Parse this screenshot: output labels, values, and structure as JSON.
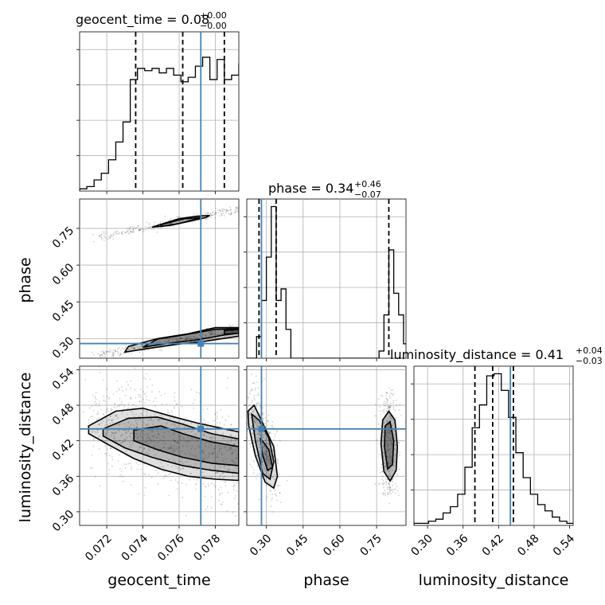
{
  "chart_data": {
    "type": "corner",
    "parameters": [
      "geocent_time",
      "phase",
      "luminosity_distance"
    ],
    "truths": {
      "geocent_time": 0.0772,
      "phase": 0.28,
      "luminosity_distance": 0.44
    },
    "colors": {
      "truth": "#4682b4",
      "hist": "#000000",
      "grid": "#b0b0b0"
    },
    "titles": [
      {
        "text": "geocent_time = 0.08",
        "sup": "+0.00",
        "sub": "−0.00"
      },
      {
        "text": "phase = 0.34",
        "sup": "+0.46",
        "sub": "−0.07"
      },
      {
        "text": "luminosity_distance = 0.41",
        "sup": "+0.04",
        "sub": "−0.03"
      }
    ],
    "axes": {
      "geocent_time": {
        "range": [
          0.0705,
          0.0793
        ],
        "ticks": [
          "0.072",
          "0.074",
          "0.076",
          "0.078"
        ],
        "label": "geocent_time",
        "quantiles": [
          0.0736,
          0.0762,
          0.0785
        ]
      },
      "phase": {
        "range": [
          0.22,
          0.87
        ],
        "ticks": [
          "0.30",
          "0.45",
          "0.60",
          "0.75"
        ],
        "label": "phase",
        "quantiles": [
          0.27,
          0.34,
          0.8
        ]
      },
      "luminosity_distance": {
        "range": [
          0.277,
          0.546
        ],
        "ticks": [
          "0.30",
          "0.36",
          "0.42",
          "0.48",
          "0.54"
        ],
        "label": "luminosity_distance",
        "quantiles": [
          0.38,
          0.41,
          0.445
        ]
      }
    },
    "hist_geocent_time": {
      "edges_start": 0.0705,
      "bin_width": 0.0004,
      "counts": [
        1,
        2,
        5,
        8,
        14,
        22,
        31,
        50,
        55,
        54,
        55,
        53,
        55,
        52,
        49,
        51,
        56,
        60,
        50,
        59,
        50,
        52,
        57,
        64,
        68,
        62
      ]
    },
    "hist_phase": {
      "edges_start": 0.22,
      "bin_width": 0.02,
      "counts": [
        0,
        0,
        15,
        40,
        70,
        105,
        40,
        48,
        20,
        0,
        0,
        0,
        0,
        0,
        0,
        0,
        0,
        0,
        0,
        0,
        0,
        0,
        0,
        0,
        0,
        0,
        0,
        5,
        30,
        75,
        45,
        30,
        10,
        2
      ]
    },
    "hist_luminosity_distance": {
      "edges_start": 0.277,
      "bin_width": 0.0123,
      "counts": [
        1,
        1,
        2,
        3,
        6,
        9,
        15,
        28,
        47,
        58,
        72,
        73,
        65,
        52,
        35,
        23,
        15,
        10,
        7,
        4,
        2,
        1
      ]
    },
    "contours": {
      "phase_vs_geocent_time": [
        {
          "x": [
            0.0745,
            0.0755,
            0.0765,
            0.0775,
            0.0777,
            0.077,
            0.076,
            0.0748
          ],
          "y": [
            0.755,
            0.762,
            0.778,
            0.795,
            0.803,
            0.8,
            0.79,
            0.762
          ]
        },
        {
          "x": [
            0.075,
            0.076,
            0.077,
            0.0772,
            0.0762,
            0.075
          ],
          "y": [
            0.758,
            0.77,
            0.79,
            0.795,
            0.788,
            0.765
          ]
        },
        {
          "x": [
            0.073,
            0.0745,
            0.076,
            0.0775,
            0.0793,
            0.0793,
            0.078,
            0.0765,
            0.0748,
            0.0732
          ],
          "y": [
            0.245,
            0.262,
            0.278,
            0.29,
            0.31,
            0.345,
            0.345,
            0.32,
            0.3,
            0.268
          ]
        },
        {
          "x": [
            0.074,
            0.0755,
            0.077,
            0.0785,
            0.0793,
            0.0793,
            0.078,
            0.0765,
            0.0748
          ],
          "y": [
            0.265,
            0.282,
            0.295,
            0.315,
            0.322,
            0.34,
            0.338,
            0.318,
            0.298
          ]
        },
        {
          "x": [
            0.0785,
            0.0793,
            0.0793,
            0.0785
          ],
          "y": [
            0.318,
            0.322,
            0.337,
            0.333
          ]
        }
      ],
      "luminosity_distance_vs_geocent_time": [
        {
          "x": [
            0.071,
            0.0725,
            0.074,
            0.0755,
            0.077,
            0.0785,
            0.0793,
            0.0793,
            0.078,
            0.0765,
            0.075,
            0.0735,
            0.072,
            0.071
          ],
          "y": [
            0.445,
            0.47,
            0.475,
            0.462,
            0.45,
            0.44,
            0.435,
            0.353,
            0.355,
            0.36,
            0.372,
            0.39,
            0.415,
            0.432
          ]
        },
        {
          "x": [
            0.0718,
            0.0732,
            0.0748,
            0.0762,
            0.0778,
            0.0793,
            0.0793,
            0.0778,
            0.0762,
            0.0745,
            0.073,
            0.0718
          ],
          "y": [
            0.44,
            0.458,
            0.46,
            0.448,
            0.432,
            0.423,
            0.365,
            0.37,
            0.378,
            0.392,
            0.408,
            0.428
          ]
        },
        {
          "x": [
            0.0735,
            0.075,
            0.0762,
            0.0778,
            0.0793,
            0.0793,
            0.0778,
            0.0762,
            0.0748,
            0.0735
          ],
          "y": [
            0.438,
            0.445,
            0.432,
            0.418,
            0.41,
            0.378,
            0.382,
            0.392,
            0.405,
            0.42
          ]
        }
      ],
      "luminosity_distance_vs_phase": [
        {
          "x": [
            0.225,
            0.25,
            0.285,
            0.33,
            0.345,
            0.33,
            0.295,
            0.255,
            0.228
          ],
          "y": [
            0.47,
            0.48,
            0.45,
            0.41,
            0.36,
            0.34,
            0.35,
            0.395,
            0.445
          ]
        },
        {
          "x": [
            0.24,
            0.27,
            0.31,
            0.33,
            0.315,
            0.285,
            0.255
          ],
          "y": [
            0.465,
            0.455,
            0.425,
            0.385,
            0.355,
            0.365,
            0.42
          ]
        },
        {
          "x": [
            0.275,
            0.31,
            0.325,
            0.305,
            0.285
          ],
          "y": [
            0.425,
            0.405,
            0.375,
            0.37,
            0.395
          ]
        },
        {
          "x": [
            0.775,
            0.8,
            0.825,
            0.835,
            0.83,
            0.805,
            0.78,
            0.768
          ],
          "y": [
            0.455,
            0.47,
            0.455,
            0.41,
            0.37,
            0.352,
            0.368,
            0.415
          ]
        },
        {
          "x": [
            0.785,
            0.805,
            0.82,
            0.815,
            0.795,
            0.782
          ],
          "y": [
            0.445,
            0.452,
            0.42,
            0.38,
            0.372,
            0.41
          ]
        }
      ]
    }
  }
}
